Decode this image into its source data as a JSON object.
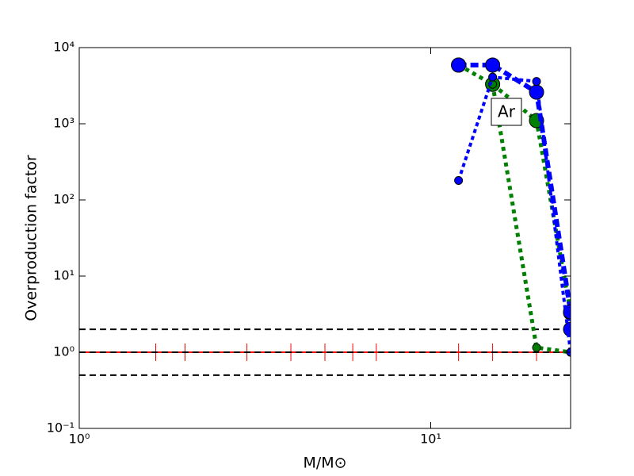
{
  "chart_data": {
    "type": "line",
    "xlabel": "M/M⊙",
    "ylabel": "Overproduction factor",
    "xscale": "log",
    "yscale": "log",
    "xlim": [
      1,
      25
    ],
    "ylim": [
      0.1,
      10000
    ],
    "xticks": [
      {
        "value": 1,
        "label": "10⁰"
      },
      {
        "value": 10,
        "label": "10¹"
      }
    ],
    "yticks": [
      {
        "value": 0.1,
        "label": "10⁻¹"
      },
      {
        "value": 1,
        "label": "10⁰"
      },
      {
        "value": 10,
        "label": "10¹"
      },
      {
        "value": 100,
        "label": "10²"
      },
      {
        "value": 1000,
        "label": "10³"
      },
      {
        "value": 10000,
        "label": "10⁴"
      }
    ],
    "annotation": "Ar",
    "hlines": [
      0.5,
      1,
      2
    ],
    "reference": {
      "color": "#ff0000",
      "x": [
        1.65,
        2,
        3,
        4,
        5,
        6,
        7,
        12,
        15,
        20,
        25
      ],
      "values": [
        1,
        1,
        1,
        1,
        1,
        1,
        1,
        1,
        1,
        1,
        1
      ]
    },
    "series": [
      {
        "color": "#008000",
        "dash": "5,5",
        "width": 5,
        "marker": 9,
        "x": [
          12,
          15,
          20,
          25
        ],
        "values": [
          5900,
          3300,
          1100,
          3.3
        ]
      },
      {
        "color": "#008000",
        "dash": "5,5",
        "width": 5,
        "marker": 5,
        "x": [
          15,
          20,
          25
        ],
        "values": [
          3300,
          1.15,
          1.0
        ]
      },
      {
        "color": "#0000ff",
        "dash": "10,5",
        "width": 6,
        "marker": 9,
        "x": [
          12,
          15,
          20,
          25,
          25
        ],
        "values": [
          5900,
          5900,
          2600,
          3.4,
          2.0
        ]
      },
      {
        "color": "#0000ff",
        "dash": "5,4",
        "width": 4,
        "marker": 5,
        "x": [
          12,
          15,
          20,
          25
        ],
        "values": [
          180,
          4100,
          3600,
          1.0
        ]
      }
    ]
  }
}
